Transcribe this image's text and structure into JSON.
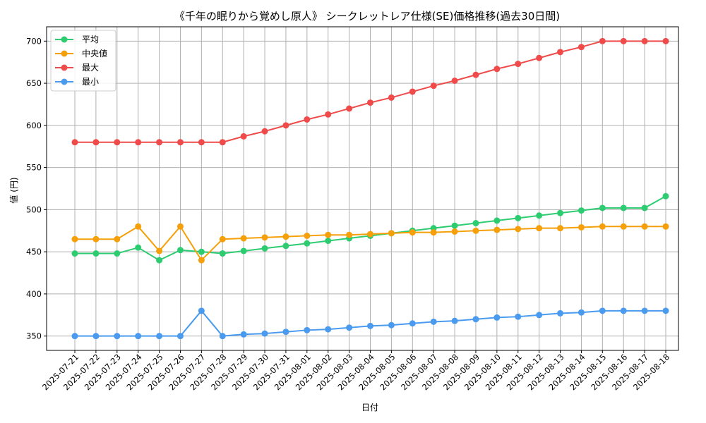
{
  "chart_data": {
    "type": "line",
    "title": "《千年の眠りから覚めし原人》 シークレットレア仕様(SE)価格推移(過去30日間)",
    "xlabel": "日付",
    "ylabel": "値 (円)",
    "ylim": [
      333,
      717
    ],
    "yticks": [
      350,
      400,
      450,
      500,
      550,
      600,
      650,
      700
    ],
    "grid": true,
    "legend_position": "top-left",
    "categories": [
      "2025-07-21",
      "2025-07-22",
      "2025-07-23",
      "2025-07-24",
      "2025-07-25",
      "2025-07-26",
      "2025-07-27",
      "2025-07-28",
      "2025-07-29",
      "2025-07-30",
      "2025-07-31",
      "2025-08-01",
      "2025-08-02",
      "2025-08-03",
      "2025-08-04",
      "2025-08-05",
      "2025-08-06",
      "2025-08-07",
      "2025-08-08",
      "2025-08-09",
      "2025-08-10",
      "2025-08-11",
      "2025-08-12",
      "2025-08-13",
      "2025-08-14",
      "2025-08-15",
      "2025-08-16",
      "2025-08-17",
      "2025-08-18"
    ],
    "series": [
      {
        "name": "平均",
        "color": "#2ecc71",
        "values": [
          448,
          448,
          448,
          455,
          440,
          452,
          450,
          448,
          451,
          454,
          457,
          460,
          463,
          466,
          469,
          472,
          475,
          478,
          481,
          484,
          487,
          490,
          493,
          496,
          499,
          502,
          502,
          502,
          516
        ]
      },
      {
        "name": "中央値",
        "color": "#f5a00a",
        "values": [
          465,
          465,
          465,
          480,
          451,
          480,
          440,
          465,
          466,
          467,
          468,
          469,
          470,
          470,
          471,
          472,
          473,
          473,
          474,
          475,
          476,
          477,
          478,
          478,
          479,
          480,
          480,
          480,
          480
        ]
      },
      {
        "name": "最大",
        "color": "#ef4b4b",
        "values": [
          580,
          580,
          580,
          580,
          580,
          580,
          580,
          580,
          587,
          593,
          600,
          607,
          613,
          620,
          627,
          633,
          640,
          647,
          653,
          660,
          667,
          673,
          680,
          687,
          693,
          700,
          700,
          700,
          700
        ]
      },
      {
        "name": "最小",
        "color": "#4a9bf0",
        "values": [
          350,
          350,
          350,
          350,
          350,
          350,
          380,
          350,
          352,
          353,
          355,
          357,
          358,
          360,
          362,
          363,
          365,
          367,
          368,
          370,
          372,
          373,
          375,
          377,
          378,
          380,
          380,
          380,
          380
        ]
      }
    ]
  }
}
